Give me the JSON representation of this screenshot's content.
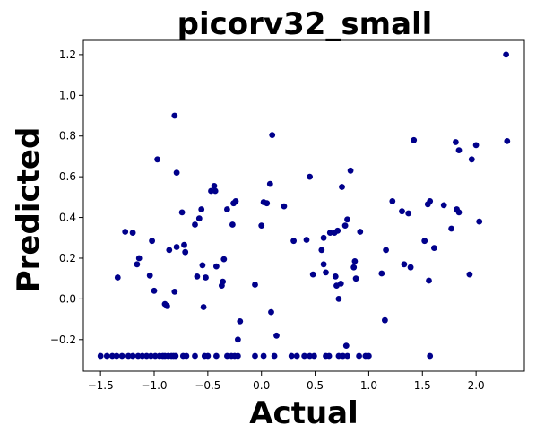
{
  "chart_data": {
    "type": "scatter",
    "title": "picorv32_small",
    "xlabel": "Actual",
    "ylabel": "Predicted",
    "xlim": [
      -1.66,
      2.45
    ],
    "ylim": [
      -0.355,
      1.27
    ],
    "xticks": [
      -1.5,
      -1.0,
      -0.5,
      0.0,
      0.5,
      1.0,
      1.5,
      2.0
    ],
    "xtick_labels": [
      "−1.5",
      "−1.0",
      "−0.5",
      "0.0",
      "0.5",
      "1.0",
      "1.5",
      "2.0"
    ],
    "yticks": [
      -0.2,
      0.0,
      0.2,
      0.4,
      0.6,
      0.8,
      1.0,
      1.2
    ],
    "ytick_labels": [
      "−0.2",
      "0.0",
      "0.2",
      "0.4",
      "0.6",
      "0.8",
      "1.0",
      "1.2"
    ],
    "grid": false,
    "marker_color": "#00008b",
    "points": [
      {
        "x": -1.5,
        "y": -0.28
      },
      {
        "x": -1.44,
        "y": -0.28
      },
      {
        "x": -1.39,
        "y": -0.28
      },
      {
        "x": -1.35,
        "y": -0.28
      },
      {
        "x": -1.3,
        "y": -0.28
      },
      {
        "x": -1.24,
        "y": -0.28
      },
      {
        "x": -1.2,
        "y": -0.28
      },
      {
        "x": -1.15,
        "y": -0.28
      },
      {
        "x": -1.11,
        "y": -0.28
      },
      {
        "x": -1.07,
        "y": -0.28
      },
      {
        "x": -1.03,
        "y": -0.28
      },
      {
        "x": -0.99,
        "y": -0.28
      },
      {
        "x": -0.95,
        "y": -0.28
      },
      {
        "x": -0.92,
        "y": -0.28
      },
      {
        "x": -0.9,
        "y": -0.28
      },
      {
        "x": -0.87,
        "y": -0.28
      },
      {
        "x": -0.84,
        "y": -0.28
      },
      {
        "x": -0.82,
        "y": -0.28
      },
      {
        "x": -0.8,
        "y": -0.28
      },
      {
        "x": -0.73,
        "y": -0.28
      },
      {
        "x": -0.7,
        "y": -0.28
      },
      {
        "x": -0.62,
        "y": -0.28
      },
      {
        "x": -0.53,
        "y": -0.28
      },
      {
        "x": -0.5,
        "y": -0.28
      },
      {
        "x": -0.42,
        "y": -0.28
      },
      {
        "x": -0.32,
        "y": -0.28
      },
      {
        "x": -0.28,
        "y": -0.28
      },
      {
        "x": -0.25,
        "y": -0.28
      },
      {
        "x": -0.22,
        "y": -0.28
      },
      {
        "x": -0.06,
        "y": -0.28
      },
      {
        "x": 0.02,
        "y": -0.28
      },
      {
        "x": 0.12,
        "y": -0.28
      },
      {
        "x": 0.28,
        "y": -0.28
      },
      {
        "x": 0.33,
        "y": -0.28
      },
      {
        "x": 0.4,
        "y": -0.28
      },
      {
        "x": 0.45,
        "y": -0.28
      },
      {
        "x": 0.49,
        "y": -0.28
      },
      {
        "x": 0.6,
        "y": -0.28
      },
      {
        "x": 0.63,
        "y": -0.28
      },
      {
        "x": 0.72,
        "y": -0.28
      },
      {
        "x": 0.76,
        "y": -0.28
      },
      {
        "x": 0.8,
        "y": -0.28
      },
      {
        "x": 0.91,
        "y": -0.28
      },
      {
        "x": 0.97,
        "y": -0.28
      },
      {
        "x": 1.0,
        "y": -0.28
      },
      {
        "x": 1.57,
        "y": -0.28
      },
      {
        "x": -1.34,
        "y": 0.105
      },
      {
        "x": -1.27,
        "y": 0.33
      },
      {
        "x": -1.2,
        "y": 0.325
      },
      {
        "x": -1.16,
        "y": 0.17
      },
      {
        "x": -1.14,
        "y": 0.2
      },
      {
        "x": -1.04,
        "y": 0.115
      },
      {
        "x": -1.02,
        "y": 0.285
      },
      {
        "x": -1.0,
        "y": 0.04
      },
      {
        "x": -0.97,
        "y": 0.685
      },
      {
        "x": -0.9,
        "y": -0.025
      },
      {
        "x": -0.88,
        "y": -0.035
      },
      {
        "x": -0.86,
        "y": 0.24
      },
      {
        "x": -0.81,
        "y": 0.9
      },
      {
        "x": -0.81,
        "y": 0.035
      },
      {
        "x": -0.79,
        "y": 0.62
      },
      {
        "x": -0.79,
        "y": 0.255
      },
      {
        "x": -0.74,
        "y": 0.425
      },
      {
        "x": -0.72,
        "y": 0.265
      },
      {
        "x": -0.71,
        "y": 0.23
      },
      {
        "x": -0.62,
        "y": 0.365
      },
      {
        "x": -0.6,
        "y": 0.11
      },
      {
        "x": -0.58,
        "y": 0.395
      },
      {
        "x": -0.56,
        "y": 0.44
      },
      {
        "x": -0.55,
        "y": 0.165
      },
      {
        "x": -0.54,
        "y": -0.04
      },
      {
        "x": -0.52,
        "y": 0.105
      },
      {
        "x": -0.47,
        "y": 0.53
      },
      {
        "x": -0.44,
        "y": 0.555
      },
      {
        "x": -0.43,
        "y": 0.53
      },
      {
        "x": -0.42,
        "y": 0.16
      },
      {
        "x": -0.37,
        "y": 0.065
      },
      {
        "x": -0.36,
        "y": 0.085
      },
      {
        "x": -0.35,
        "y": 0.195
      },
      {
        "x": -0.32,
        "y": 0.44
      },
      {
        "x": -0.26,
        "y": 0.47
      },
      {
        "x": -0.24,
        "y": 0.48
      },
      {
        "x": -0.27,
        "y": 0.365
      },
      {
        "x": -0.22,
        "y": -0.2
      },
      {
        "x": -0.2,
        "y": -0.11
      },
      {
        "x": -0.06,
        "y": 0.07
      },
      {
        "x": 0.0,
        "y": 0.36
      },
      {
        "x": 0.02,
        "y": 0.475
      },
      {
        "x": 0.05,
        "y": 0.47
      },
      {
        "x": 0.08,
        "y": 0.565
      },
      {
        "x": 0.09,
        "y": -0.065
      },
      {
        "x": 0.1,
        "y": 0.805
      },
      {
        "x": 0.14,
        "y": -0.18
      },
      {
        "x": 0.21,
        "y": 0.455
      },
      {
        "x": 0.3,
        "y": 0.285
      },
      {
        "x": 0.42,
        "y": 0.29
      },
      {
        "x": 0.45,
        "y": 0.6
      },
      {
        "x": 0.48,
        "y": 0.12
      },
      {
        "x": 0.56,
        "y": 0.24
      },
      {
        "x": 0.58,
        "y": 0.3
      },
      {
        "x": 0.58,
        "y": 0.17
      },
      {
        "x": 0.6,
        "y": 0.13
      },
      {
        "x": 0.64,
        "y": 0.325
      },
      {
        "x": 0.68,
        "y": 0.325
      },
      {
        "x": 0.69,
        "y": 0.11
      },
      {
        "x": 0.7,
        "y": 0.065
      },
      {
        "x": 0.71,
        "y": 0.335
      },
      {
        "x": 0.72,
        "y": 0.0
      },
      {
        "x": 0.74,
        "y": 0.075
      },
      {
        "x": 0.75,
        "y": 0.55
      },
      {
        "x": 0.78,
        "y": 0.36
      },
      {
        "x": 0.79,
        "y": -0.23
      },
      {
        "x": 0.8,
        "y": 0.39
      },
      {
        "x": 0.83,
        "y": 0.63
      },
      {
        "x": 0.86,
        "y": 0.155
      },
      {
        "x": 0.87,
        "y": 0.185
      },
      {
        "x": 0.88,
        "y": 0.1
      },
      {
        "x": 0.92,
        "y": 0.33
      },
      {
        "x": 1.12,
        "y": 0.125
      },
      {
        "x": 1.15,
        "y": -0.105
      },
      {
        "x": 1.16,
        "y": 0.24
      },
      {
        "x": 1.22,
        "y": 0.48
      },
      {
        "x": 1.31,
        "y": 0.43
      },
      {
        "x": 1.33,
        "y": 0.17
      },
      {
        "x": 1.37,
        "y": 0.42
      },
      {
        "x": 1.39,
        "y": 0.155
      },
      {
        "x": 1.42,
        "y": 0.78
      },
      {
        "x": 1.52,
        "y": 0.285
      },
      {
        "x": 1.55,
        "y": 0.465
      },
      {
        "x": 1.56,
        "y": 0.09
      },
      {
        "x": 1.57,
        "y": 0.48
      },
      {
        "x": 1.61,
        "y": 0.25
      },
      {
        "x": 1.7,
        "y": 0.46
      },
      {
        "x": 1.77,
        "y": 0.345
      },
      {
        "x": 1.81,
        "y": 0.77
      },
      {
        "x": 1.82,
        "y": 0.44
      },
      {
        "x": 1.84,
        "y": 0.73
      },
      {
        "x": 1.84,
        "y": 0.425
      },
      {
        "x": 1.94,
        "y": 0.12
      },
      {
        "x": 1.96,
        "y": 0.685
      },
      {
        "x": 2.0,
        "y": 0.755
      },
      {
        "x": 2.03,
        "y": 0.38
      },
      {
        "x": 2.28,
        "y": 1.2
      },
      {
        "x": 2.29,
        "y": 0.775
      }
    ]
  }
}
